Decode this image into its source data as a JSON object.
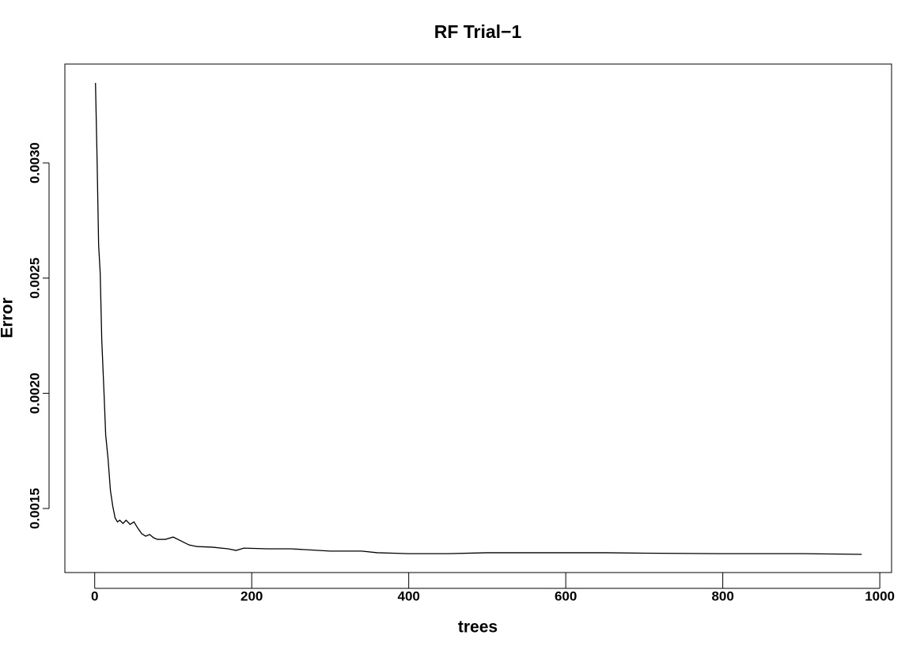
{
  "chart_data": {
    "type": "line",
    "title": "RF Trial−1",
    "x_label": "trees",
    "y_label": "Error",
    "x": [
      1,
      3,
      5,
      7,
      9,
      12,
      14,
      17,
      20,
      23,
      26,
      29,
      32,
      36,
      40,
      45,
      50,
      55,
      60,
      65,
      70,
      75,
      80,
      90,
      100,
      110,
      120,
      130,
      150,
      170,
      180,
      190,
      220,
      250,
      300,
      340,
      360,
      400,
      450,
      500,
      550,
      600,
      650,
      700,
      800,
      900,
      977
    ],
    "series": [
      {
        "color": "#000000",
        "values": [
          0.003347,
          0.00302,
          0.002643,
          0.002523,
          0.002231,
          0.001991,
          0.001819,
          0.001716,
          0.001579,
          0.00151,
          0.001459,
          0.001442,
          0.001449,
          0.001435,
          0.001449,
          0.001431,
          0.001442,
          0.001414,
          0.00139,
          0.00138,
          0.001387,
          0.001373,
          0.001366,
          0.001366,
          0.001376,
          0.001359,
          0.001342,
          0.001335,
          0.001332,
          0.001325,
          0.001318,
          0.001328,
          0.001325,
          0.001325,
          0.001315,
          0.001315,
          0.001308,
          0.001304,
          0.001304,
          0.001308,
          0.001308,
          0.001308,
          0.001308,
          0.001306,
          0.001304,
          0.001304,
          0.001301
        ]
      }
    ],
    "xlim": [
      -38,
      1015
    ],
    "ylim": [
      0.001222,
      0.003429
    ],
    "xticks": [
      0,
      200,
      400,
      600,
      800,
      1000
    ],
    "yticks": [
      {
        "value": 0.0015,
        "label": "0.0015"
      },
      {
        "value": 0.002,
        "label": "0.0020"
      },
      {
        "value": 0.0025,
        "label": "0.0025"
      },
      {
        "value": 0.003,
        "label": "0.0030"
      }
    ]
  }
}
